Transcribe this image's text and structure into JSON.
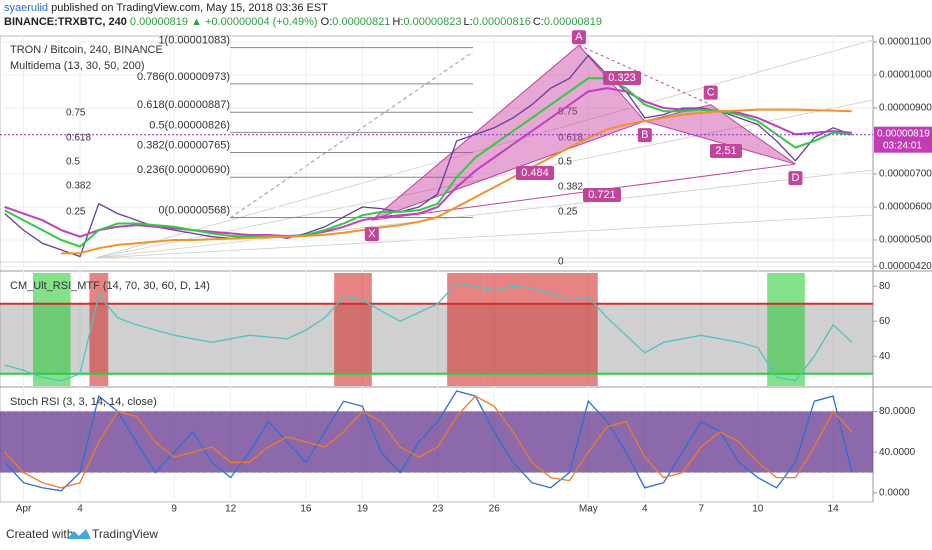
{
  "header": {
    "publisher": "syaerulid",
    "published": "published on TradingView.com, May 15, 2018 03:36 EST",
    "symbol": "BINANCE:TRXBTC, 240",
    "last": "0.00000819",
    "change": "▲ +0.00000004 (+0.49%)",
    "ohlc": [
      {
        "label": "O:",
        "value": "0.00000821"
      },
      {
        "label": "H:",
        "value": "0.00000823"
      },
      {
        "label": "L:",
        "value": "0.00000816"
      },
      {
        "label": "C:",
        "value": "0.00000819"
      }
    ]
  },
  "footer": {
    "created": "Created with",
    "brand": "TradingView"
  },
  "chart_data": [
    {
      "type": "line",
      "title": "TRON / Bitcoin, 240, BINANCE",
      "subtitle": "Multidema (13, 30, 50, 200)",
      "x": [
        0,
        1,
        2,
        3,
        4,
        5,
        6,
        7,
        8,
        9,
        10,
        11,
        12,
        13,
        14,
        15,
        16,
        17,
        18,
        19,
        20,
        21,
        22,
        23,
        24,
        25,
        26,
        27,
        28,
        29,
        30,
        31,
        32,
        33,
        34,
        35,
        36,
        37,
        38,
        39,
        40,
        41,
        42,
        43,
        44,
        45
      ],
      "xlim": [
        -0.25,
        46.12
      ],
      "xticks": [
        {
          "value": 1,
          "label": "Apr"
        },
        4,
        9,
        12,
        16,
        19,
        23,
        26,
        {
          "value": 31,
          "label": "May"
        },
        {
          "value": 34,
          "label": "4"
        },
        {
          "value": 37,
          "label": "7"
        },
        {
          "value": 40,
          "label": "10"
        },
        {
          "value": 44,
          "label": "14"
        }
      ],
      "ylim": [
        4.09e-06,
        1.112e-05
      ],
      "yticks": [
        {
          "value": 4.2e-06,
          "label": "0.00000420"
        },
        {
          "value": 5e-06,
          "label": "0.00000500"
        },
        {
          "value": 6e-06,
          "label": "0.00000600"
        },
        {
          "value": 7e-06,
          "label": "0.00000700"
        },
        {
          "value": 9e-06,
          "label": "0.00000900"
        },
        {
          "value": 1e-05,
          "label": "0.00001000"
        },
        {
          "value": 1.1e-05,
          "label": "0.00001100"
        }
      ],
      "grid": true,
      "series": [
        {
          "color": "#6a3d9a",
          "values": [
            5.8e-06,
            5.3e-06,
            4.9e-06,
            4.7e-06,
            4.5e-06,
            6.1e-06,
            5.8e-06,
            5.6e-06,
            5.4e-06,
            5.3e-06,
            5.2e-06,
            5.1e-06,
            5.05e-06,
            5.1e-06,
            5.15e-06,
            5.05e-06,
            5.2e-06,
            5.4e-06,
            5.7e-06,
            6e-06,
            5.95e-06,
            5.85e-06,
            6e-06,
            6.4e-06,
            8e-06,
            8.2e-06,
            8.4e-06,
            8.7e-06,
            9.1e-06,
            9.6e-06,
            9.9e-06,
            1.06e-05,
            1e-05,
            9.5e-06,
            8.7e-06,
            8.8e-06,
            9e-06,
            9e-06,
            8.9e-06,
            8.7e-06,
            8.5e-06,
            8e-06,
            7.4e-06,
            8.1e-06,
            8.4e-06,
            8.19e-06
          ]
        },
        {
          "color": "#c03fc0",
          "values": [
            6e-06,
            5.8e-06,
            5.6e-06,
            5.3e-06,
            5.1e-06,
            5.3e-06,
            5.4e-06,
            5.45e-06,
            5.4e-06,
            5.35e-06,
            5.3e-06,
            5.25e-06,
            5.2e-06,
            5.15e-06,
            5.15e-06,
            5.12e-06,
            5.15e-06,
            5.25e-06,
            5.4e-06,
            5.6e-06,
            5.7e-06,
            5.75e-06,
            5.8e-06,
            6e-06,
            6.6e-06,
            7.1e-06,
            7.5e-06,
            7.9e-06,
            8.3e-06,
            8.7e-06,
            9.1e-06,
            9.5e-06,
            9.6e-06,
            9.5e-06,
            9.2e-06,
            9e-06,
            8.95e-06,
            8.95e-06,
            8.9e-06,
            8.85e-06,
            8.7e-06,
            8.45e-06,
            8.2e-06,
            8.25e-06,
            8.3e-06,
            8.25e-06
          ]
        },
        {
          "color": "#2ecc40",
          "values": [
            5.9e-06,
            5.6e-06,
            5.3e-06,
            5e-06,
            4.8e-06,
            5.3e-06,
            5.5e-06,
            5.5e-06,
            5.45e-06,
            5.4e-06,
            5.3e-06,
            5.2e-06,
            5.12e-06,
            5.1e-06,
            5.12e-06,
            5.1e-06,
            5.15e-06,
            5.3e-06,
            5.5e-06,
            5.75e-06,
            5.85e-06,
            5.85e-06,
            5.9e-06,
            6.1e-06,
            6.9e-06,
            7.5e-06,
            7.9e-06,
            8.3e-06,
            8.7e-06,
            9.1e-06,
            9.5e-06,
            9.9e-06,
            9.9e-06,
            9.6e-06,
            9.1e-06,
            8.9e-06,
            8.9e-06,
            8.95e-06,
            8.9e-06,
            8.8e-06,
            8.6e-06,
            8.2e-06,
            7.8e-06,
            8e-06,
            8.25e-06,
            8.2e-06
          ]
        },
        {
          "color": "#f0932b",
          "values": [
            null,
            null,
            null,
            4.6e-06,
            4.6e-06,
            4.75e-06,
            4.85e-06,
            4.9e-06,
            4.95e-06,
            5e-06,
            5e-06,
            5.02e-06,
            5.04e-06,
            5.06e-06,
            5.08e-06,
            5.1e-06,
            5.12e-06,
            5.16e-06,
            5.22e-06,
            5.3e-06,
            5.38e-06,
            5.45e-06,
            5.55e-06,
            5.7e-06,
            6e-06,
            6.3e-06,
            6.6e-06,
            6.9e-06,
            7.2e-06,
            7.5e-06,
            7.8e-06,
            8.1e-06,
            8.35e-06,
            8.5e-06,
            8.6e-06,
            8.7e-06,
            8.8e-06,
            8.85e-06,
            8.9e-06,
            8.92e-06,
            8.95e-06,
            8.95e-06,
            8.95e-06,
            8.93e-06,
            8.92e-06,
            8.9e-06
          ]
        }
      ],
      "last_label": "0.00000819",
      "countdown": "03:24:01",
      "fib": [
        {
          "value": 1.083e-05,
          "label": "1(0.00001083)"
        },
        {
          "value": 9.73e-06,
          "label": "0.786(0.00000973)"
        },
        {
          "value": 8.87e-06,
          "label": "0.618(0.00000887)"
        },
        {
          "value": 8.26e-06,
          "label": "0.5(0.00000826)"
        },
        {
          "value": 7.65e-06,
          "label": "0.382(0.00000765)"
        },
        {
          "value": 6.9e-06,
          "label": "0.236(0.00000690)"
        },
        {
          "value": 5.68e-06,
          "label": "0(0.00000568)"
        }
      ],
      "pattern": {
        "points": [
          "X",
          "A",
          "B",
          "C",
          "D"
        ],
        "x": [
          19.5,
          30.5,
          34,
          37.5,
          42
        ],
        "y": [
          5.6e-06,
          1.09e-05,
          8.6e-06,
          9.1e-06,
          7.3e-06
        ],
        "ratios": [
          "0.323",
          "0.484",
          "2.51",
          "0.721"
        ]
      },
      "faint_labels": {
        "left": [
          "0.75",
          "0.618",
          "0.5",
          "0.382",
          "0.25"
        ],
        "middle": [
          "0.75",
          "0.618",
          "0.5",
          "0.382",
          "0.25",
          "0"
        ]
      }
    },
    {
      "type": "line",
      "title": "CM_Ult_RSI_MTF (14, 70, 30, 60, D, 14)",
      "ylim": [
        23,
        87.6
      ],
      "yticks": [
        40,
        60,
        80
      ],
      "bands": [
        70,
        30
      ],
      "series": [
        {
          "color": "#4fc3c0",
          "values": [
            35,
            32,
            28,
            26,
            30,
            75,
            62,
            58,
            55,
            52,
            50,
            48,
            50,
            52,
            51,
            50,
            55,
            62,
            74,
            72,
            66,
            60,
            65,
            70,
            82,
            80,
            78,
            80,
            79,
            76,
            72,
            74,
            62,
            52,
            42,
            48,
            50,
            52,
            50,
            48,
            45,
            28,
            26,
            40,
            58,
            48
          ]
        }
      ]
    },
    {
      "type": "line",
      "title": "Stoch RSI (3, 3, 14, 14, close)",
      "ylim": [
        -8,
        102
      ],
      "yticks": [
        {
          "value": 0,
          "label": "0.0000"
        },
        {
          "value": 40,
          "label": "40.0000"
        },
        {
          "value": 80,
          "label": "80.0000"
        }
      ],
      "levels": [
        80,
        20
      ],
      "series": [
        {
          "color": "#2a6fd6",
          "values": [
            30,
            10,
            5,
            2,
            20,
            95,
            80,
            50,
            20,
            40,
            60,
            30,
            15,
            40,
            70,
            50,
            30,
            60,
            90,
            85,
            40,
            20,
            50,
            70,
            100,
            95,
            60,
            30,
            10,
            5,
            20,
            90,
            70,
            40,
            5,
            10,
            40,
            70,
            60,
            30,
            15,
            5,
            30,
            90,
            95,
            20
          ]
        },
        {
          "color": "#f07a2b",
          "values": [
            40,
            20,
            10,
            5,
            10,
            50,
            80,
            75,
            50,
            35,
            40,
            45,
            30,
            30,
            45,
            55,
            50,
            45,
            60,
            80,
            70,
            45,
            35,
            45,
            75,
            95,
            85,
            60,
            30,
            15,
            12,
            40,
            65,
            70,
            35,
            15,
            20,
            45,
            60,
            50,
            30,
            15,
            15,
            45,
            80,
            60
          ]
        }
      ]
    }
  ]
}
